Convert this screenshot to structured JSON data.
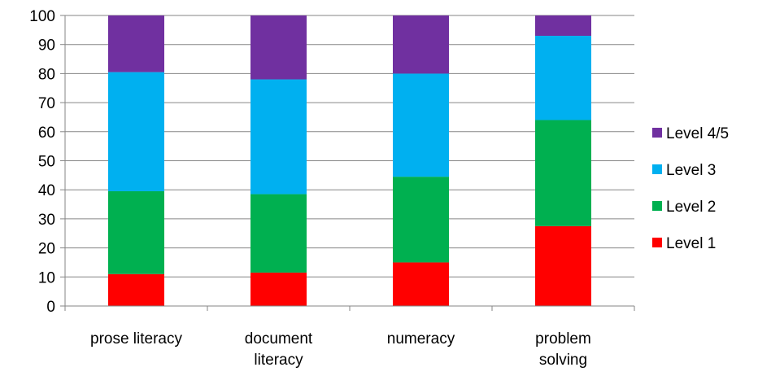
{
  "chart_data": {
    "type": "bar",
    "stacked": true,
    "title": "",
    "xlabel": "",
    "ylabel": "",
    "ylim": [
      0,
      100
    ],
    "yticks": [
      0,
      10,
      20,
      30,
      40,
      50,
      60,
      70,
      80,
      90,
      100
    ],
    "grid": true,
    "legend_position": "right",
    "categories": [
      [
        "prose literacy"
      ],
      [
        "document",
        "literacy"
      ],
      [
        "numeracy"
      ],
      [
        "problem",
        "solving"
      ]
    ],
    "series": [
      {
        "name": "Level 1",
        "color": "#ff0000",
        "values": [
          11,
          11.5,
          15,
          27.5
        ]
      },
      {
        "name": "Level 2",
        "color": "#00b050",
        "values": [
          28.5,
          27,
          29.5,
          36.5
        ]
      },
      {
        "name": "Level 3",
        "color": "#00b0f0",
        "values": [
          41,
          39.5,
          35.5,
          29
        ]
      },
      {
        "name": "Level 4/5",
        "color": "#7030a0",
        "values": [
          19.5,
          22,
          20,
          7
        ]
      }
    ]
  }
}
